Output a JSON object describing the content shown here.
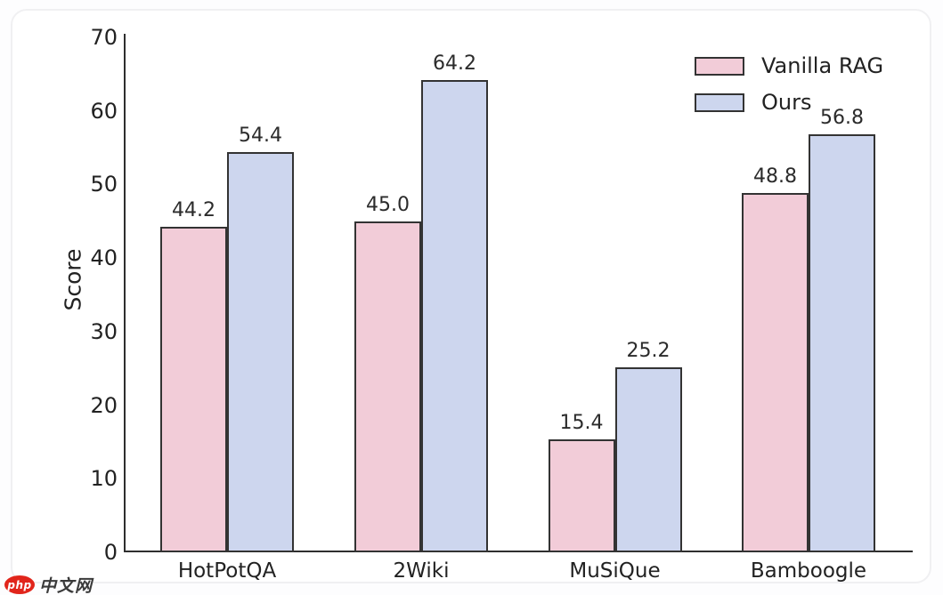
{
  "chart_data": {
    "type": "bar",
    "categories": [
      "HotPotQA",
      "2Wiki",
      "MuSiQue",
      "Bamboogle"
    ],
    "series": [
      {
        "name": "Vanilla RAG",
        "color": "#f2ccd8",
        "values": [
          44.2,
          45.0,
          15.4,
          48.8
        ]
      },
      {
        "name": "Ours",
        "color": "#cdd6ee",
        "values": [
          54.4,
          64.2,
          25.2,
          56.8
        ]
      }
    ],
    "title": "",
    "xlabel": "",
    "ylabel": "Score",
    "ylim": [
      0,
      70
    ],
    "yticks": [
      0,
      10,
      20,
      30,
      40,
      50,
      60,
      70
    ],
    "grid": false,
    "legend_position": "upper right",
    "bar_edge_color": "#333333",
    "value_label_format": "one_decimal"
  },
  "legend": {
    "items": [
      {
        "label": "Vanilla RAG",
        "color": "#f2ccd8"
      },
      {
        "label": "Ours",
        "color": "#cdd6ee"
      }
    ]
  },
  "watermark": {
    "logo_text": "php",
    "site_text": "中文网"
  }
}
